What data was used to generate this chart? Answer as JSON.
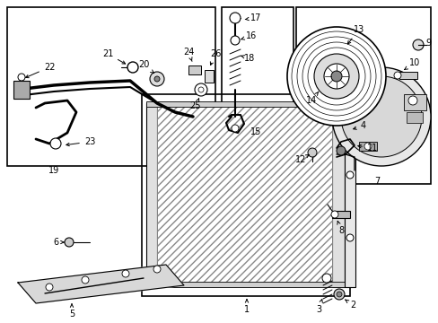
{
  "bg_color": "#ffffff",
  "fig_width": 4.89,
  "fig_height": 3.6,
  "dpi": 100,
  "label_fontsize": 7.0,
  "line_color": "#000000"
}
